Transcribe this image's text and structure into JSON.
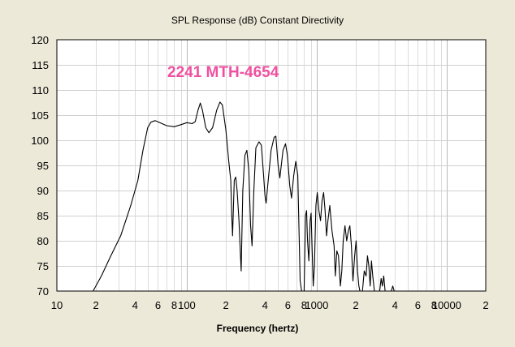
{
  "chart_data": {
    "type": "line",
    "title": "SPL Response (dB)   Constant Directivity",
    "xlabel": "Frequency (hertz)",
    "ylabel": "",
    "xscale": "log",
    "xlim": [
      10,
      20000
    ],
    "ylim": [
      70,
      120
    ],
    "grid": true,
    "annotation": "2241 MTH-4654",
    "annotation_color": "#F050A0",
    "line_color": "#000000",
    "plot_background": "#FFFFFF",
    "x_tick_labels": [
      {
        "value": 10,
        "label": "10"
      },
      {
        "value": 20,
        "label": "2"
      },
      {
        "value": 40,
        "label": "4"
      },
      {
        "value": 60,
        "label": "6"
      },
      {
        "value": 80,
        "label": "8"
      },
      {
        "value": 100,
        "label": "100"
      },
      {
        "value": 200,
        "label": "2"
      },
      {
        "value": 400,
        "label": "4"
      },
      {
        "value": 600,
        "label": "6"
      },
      {
        "value": 800,
        "label": "8"
      },
      {
        "value": 1000,
        "label": "1000"
      },
      {
        "value": 2000,
        "label": "2"
      },
      {
        "value": 4000,
        "label": "4"
      },
      {
        "value": 6000,
        "label": "6"
      },
      {
        "value": 8000,
        "label": "8"
      },
      {
        "value": 10000,
        "label": "10000"
      },
      {
        "value": 20000,
        "label": "2"
      }
    ],
    "y_ticks": [
      70,
      75,
      80,
      85,
      90,
      95,
      100,
      105,
      110,
      115,
      120
    ],
    "series": [
      {
        "points": [
          [
            19.0,
            70
          ],
          [
            22,
            73
          ],
          [
            26,
            77
          ],
          [
            31,
            81
          ],
          [
            37,
            87
          ],
          [
            42,
            92
          ],
          [
            46,
            98
          ],
          [
            50,
            102.5
          ],
          [
            53,
            103.6
          ],
          [
            57,
            103.9
          ],
          [
            62,
            103.5
          ],
          [
            70,
            102.9
          ],
          [
            80,
            102.7
          ],
          [
            90,
            103.1
          ],
          [
            100,
            103.5
          ],
          [
            110,
            103.3
          ],
          [
            116,
            103.7
          ],
          [
            122,
            106
          ],
          [
            127,
            107.4
          ],
          [
            132,
            106
          ],
          [
            140,
            102.5
          ],
          [
            148,
            101.5
          ],
          [
            158,
            102.5
          ],
          [
            170,
            106
          ],
          [
            180,
            107.6
          ],
          [
            188,
            107
          ],
          [
            200,
            102
          ],
          [
            210,
            96
          ],
          [
            218,
            92
          ],
          [
            222,
            85
          ],
          [
            225,
            81
          ],
          [
            232,
            92
          ],
          [
            238,
            92.7
          ],
          [
            244,
            90
          ],
          [
            252,
            84
          ],
          [
            258,
            78
          ],
          [
            262,
            74
          ],
          [
            270,
            90
          ],
          [
            280,
            97
          ],
          [
            290,
            98
          ],
          [
            300,
            94
          ],
          [
            310,
            83
          ],
          [
            318,
            79
          ],
          [
            328,
            90
          ],
          [
            340,
            98.5
          ],
          [
            360,
            99.7
          ],
          [
            375,
            99
          ],
          [
            390,
            93
          ],
          [
            400,
            89
          ],
          [
            408,
            87.5
          ],
          [
            420,
            91
          ],
          [
            445,
            98
          ],
          [
            470,
            100.6
          ],
          [
            485,
            100.8
          ],
          [
            505,
            95
          ],
          [
            520,
            92.5
          ],
          [
            550,
            98
          ],
          [
            575,
            99.3
          ],
          [
            595,
            97
          ],
          [
            620,
            91
          ],
          [
            640,
            88.5
          ],
          [
            665,
            93
          ],
          [
            690,
            95.8
          ],
          [
            715,
            93
          ],
          [
            745,
            72
          ],
          [
            765,
            70
          ]
        ]
      },
      {
        "points": [
          [
            800,
            70
          ],
          [
            820,
            85
          ],
          [
            835,
            86
          ],
          [
            850,
            80
          ],
          [
            870,
            76
          ],
          [
            890,
            84
          ],
          [
            905,
            85.5
          ],
          [
            922,
            78
          ],
          [
            940,
            71
          ],
          [
            960,
            75
          ],
          [
            985,
            87
          ],
          [
            1010,
            89.6
          ],
          [
            1040,
            86
          ],
          [
            1070,
            84
          ],
          [
            1100,
            88
          ],
          [
            1130,
            89.6
          ],
          [
            1160,
            86
          ],
          [
            1190,
            81
          ],
          [
            1220,
            84
          ],
          [
            1260,
            87
          ],
          [
            1310,
            82
          ],
          [
            1360,
            79
          ],
          [
            1390,
            73
          ],
          [
            1430,
            78
          ],
          [
            1470,
            77
          ],
          [
            1520,
            71
          ],
          [
            1560,
            74
          ],
          [
            1600,
            80
          ],
          [
            1650,
            83
          ],
          [
            1700,
            80
          ],
          [
            1750,
            82
          ],
          [
            1800,
            83
          ],
          [
            1850,
            79
          ],
          [
            1900,
            72
          ],
          [
            1960,
            77
          ],
          [
            2010,
            80
          ],
          [
            2060,
            74
          ],
          [
            2110,
            71
          ],
          [
            2150,
            70
          ]
        ]
      },
      {
        "points": [
          [
            2250,
            70
          ],
          [
            2320,
            74
          ],
          [
            2400,
            73
          ],
          [
            2460,
            77
          ],
          [
            2520,
            75
          ],
          [
            2580,
            71
          ],
          [
            2640,
            76
          ],
          [
            2700,
            73
          ],
          [
            2780,
            70
          ]
        ]
      },
      {
        "points": [
          [
            3050,
            70
          ],
          [
            3130,
            72.5
          ],
          [
            3200,
            71
          ],
          [
            3280,
            73
          ],
          [
            3360,
            70
          ]
        ]
      },
      {
        "points": [
          [
            3750,
            70
          ],
          [
            3850,
            71
          ],
          [
            3950,
            70
          ]
        ]
      }
    ]
  }
}
